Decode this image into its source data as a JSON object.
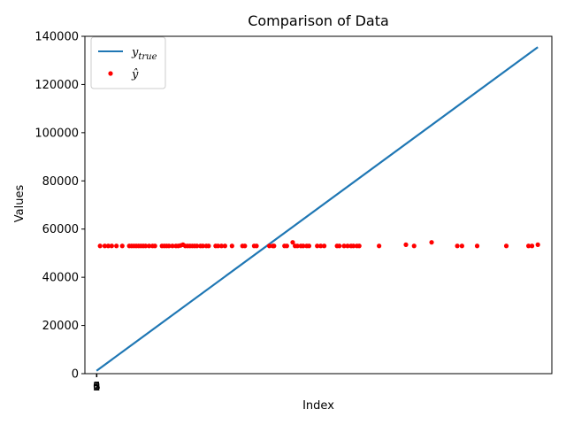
{
  "chart_data": {
    "type": "line",
    "title": "Comparison of Data",
    "xlabel": "Index",
    "ylabel": "Values",
    "xlim": [
      -0.5,
      19.5
    ],
    "ylim": [
      0,
      140000
    ],
    "yticks": [
      0,
      20000,
      40000,
      60000,
      80000,
      100000,
      120000,
      140000
    ],
    "xticks": [
      0,
      1,
      2,
      3,
      4,
      5
    ],
    "grid": false,
    "legend_position": "top-left",
    "series": [
      {
        "name": "y_true",
        "legend_label": "y",
        "legend_subscript": "true",
        "kind": "line",
        "color": "#1f77b4",
        "x": [
          0,
          18.9
        ],
        "y": [
          1200,
          135500
        ]
      },
      {
        "name": "y_hat",
        "legend_label": "ŷ",
        "kind": "scatter",
        "color": "#ff0000",
        "x": [
          0.15,
          0.35,
          0.5,
          0.65,
          0.85,
          1.1,
          1.4,
          1.5,
          1.6,
          1.7,
          1.8,
          1.9,
          2.0,
          2.1,
          2.25,
          2.4,
          2.5,
          2.8,
          2.9,
          3.0,
          3.1,
          3.25,
          3.4,
          3.5,
          3.6,
          3.7,
          3.8,
          3.9,
          4.0,
          4.1,
          4.2,
          4.3,
          4.45,
          4.55,
          4.7,
          4.8,
          5.1,
          5.2,
          5.35,
          5.5,
          5.8,
          6.25,
          6.35,
          6.75,
          6.85,
          7.4,
          7.55,
          7.6,
          8.05,
          8.15,
          8.4,
          8.5,
          8.6,
          8.75,
          8.85,
          9.0,
          9.1,
          9.45,
          9.6,
          9.75,
          10.3,
          10.4,
          10.6,
          10.75,
          10.9,
          11.0,
          11.15,
          11.25,
          12.1,
          13.25,
          13.6,
          14.35,
          15.45,
          15.65,
          16.3,
          17.55,
          18.5,
          18.65,
          18.9
        ],
        "y": [
          53000,
          53000,
          53000,
          53000,
          53000,
          53000,
          53000,
          53000,
          53000,
          53000,
          53000,
          53000,
          53000,
          53000,
          53000,
          53000,
          53000,
          53000,
          53000,
          53000,
          53000,
          53000,
          53000,
          53000,
          53200,
          53500,
          53000,
          53000,
          53000,
          53000,
          53000,
          53000,
          53000,
          53000,
          53000,
          53000,
          53000,
          53000,
          53000,
          53000,
          53000,
          53000,
          53000,
          53000,
          53000,
          53000,
          53000,
          53000,
          53000,
          53000,
          54500,
          53000,
          53000,
          53000,
          53000,
          53000,
          53000,
          53000,
          53000,
          53000,
          53000,
          53000,
          53000,
          53000,
          53000,
          53000,
          53000,
          53000,
          53000,
          53500,
          53000,
          54500,
          53000,
          53000,
          53000,
          53000,
          53000,
          53000,
          53500
        ]
      }
    ]
  }
}
